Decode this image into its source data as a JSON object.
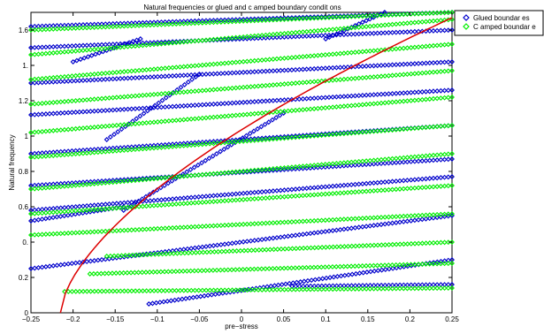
{
  "chart_data": {
    "type": "scatter",
    "title": "Natural frequencies  or glued and c amped boundary condit ons",
    "xlabel": "pre−stress",
    "ylabel": "Natural frequency",
    "xlim": [
      -0.25,
      0.25
    ],
    "ylim": [
      0,
      1.7
    ],
    "x_ticks": [
      -0.25,
      -0.2,
      -0.15,
      -0.1,
      -0.05,
      0,
      0.05,
      0.1,
      0.15,
      0.2,
      0.25
    ],
    "x_tick_labels": [
      "−0.25",
      "−0.2",
      "−0.15",
      "−0.1",
      "−0.05",
      "0",
      "0.05",
      "0.1",
      "0.15",
      "0.2",
      "0.25"
    ],
    "y_ticks": [
      0,
      0.2,
      0.4,
      0.6,
      0.8,
      1,
      1.2,
      1.4,
      1.6
    ],
    "y_tick_labels": [
      "0",
      "0.2",
      "0.",
      "0.6",
      "0.8",
      "1",
      "1.2",
      "1.",
      "1.6"
    ],
    "grid": false,
    "legend_position": "outside-top-right",
    "colors": {
      "glued": "#0000cc",
      "clamped": "#00ee00",
      "curve": "#dd0000"
    },
    "series": [
      {
        "name": "Glued boundar es",
        "marker": "diamond",
        "branches": [
          {
            "x": [
              0.06,
              0.25
            ],
            "y": [
              0.15,
              0.16
            ]
          },
          {
            "x": [
              -0.11,
              0.25
            ],
            "y": [
              0.05,
              0.3
            ]
          },
          {
            "x": [
              -0.25,
              0.25
            ],
            "y": [
              0.25,
              0.55
            ]
          },
          {
            "x": [
              -0.25,
              0.25
            ],
            "y": [
              0.58,
              0.77
            ]
          },
          {
            "x": [
              -0.25,
              0.25
            ],
            "y": [
              0.72,
              0.87
            ]
          },
          {
            "x": [
              -0.25,
              0.25
            ],
            "y": [
              0.9,
              1.06
            ]
          },
          {
            "x": [
              -0.25,
              0.25
            ],
            "y": [
              1.12,
              1.26
            ]
          },
          {
            "x": [
              -0.25,
              0.25
            ],
            "y": [
              1.3,
              1.42
            ]
          },
          {
            "x": [
              -0.25,
              0.25
            ],
            "y": [
              1.5,
              1.6
            ]
          },
          {
            "x": [
              -0.25,
              0.25
            ],
            "y": [
              1.62,
              1.7
            ]
          },
          {
            "x": [
              -0.25,
              -0.14
            ],
            "y": [
              0.52,
              0.6
            ]
          },
          {
            "x": [
              -0.14,
              0.05
            ],
            "y": [
              0.58,
              1.13
            ]
          },
          {
            "x": [
              -0.16,
              -0.05
            ],
            "y": [
              0.98,
              1.35
            ]
          },
          {
            "x": [
              -0.2,
              -0.12
            ],
            "y": [
              1.42,
              1.55
            ]
          },
          {
            "x": [
              0.1,
              0.17
            ],
            "y": [
              1.55,
              1.7
            ]
          }
        ]
      },
      {
        "name": "C amped boundar e",
        "marker": "diamond",
        "branches": [
          {
            "x": [
              -0.21,
              0.25
            ],
            "y": [
              0.12,
              0.14
            ]
          },
          {
            "x": [
              -0.18,
              0.25
            ],
            "y": [
              0.22,
              0.28
            ]
          },
          {
            "x": [
              -0.16,
              0.25
            ],
            "y": [
              0.32,
              0.4
            ]
          },
          {
            "x": [
              -0.25,
              0.25
            ],
            "y": [
              0.44,
              0.56
            ]
          },
          {
            "x": [
              -0.25,
              0.25
            ],
            "y": [
              0.56,
              0.72
            ]
          },
          {
            "x": [
              -0.25,
              0.25
            ],
            "y": [
              0.7,
              0.9
            ]
          },
          {
            "x": [
              -0.25,
              0.25
            ],
            "y": [
              0.88,
              1.06
            ]
          },
          {
            "x": [
              -0.25,
              0.25
            ],
            "y": [
              1.02,
              1.22
            ]
          },
          {
            "x": [
              -0.25,
              0.25
            ],
            "y": [
              1.18,
              1.37
            ]
          },
          {
            "x": [
              -0.25,
              0.25
            ],
            "y": [
              1.32,
              1.52
            ]
          },
          {
            "x": [
              -0.25,
              0.25
            ],
            "y": [
              1.46,
              1.66
            ]
          },
          {
            "x": [
              -0.25,
              0.25
            ],
            "y": [
              1.6,
              1.7
            ]
          }
        ]
      },
      {
        "name": "",
        "marker": "line",
        "curve": {
          "x0": -0.215,
          "x1": 0.25,
          "ymax": 1.67
        }
      }
    ]
  }
}
